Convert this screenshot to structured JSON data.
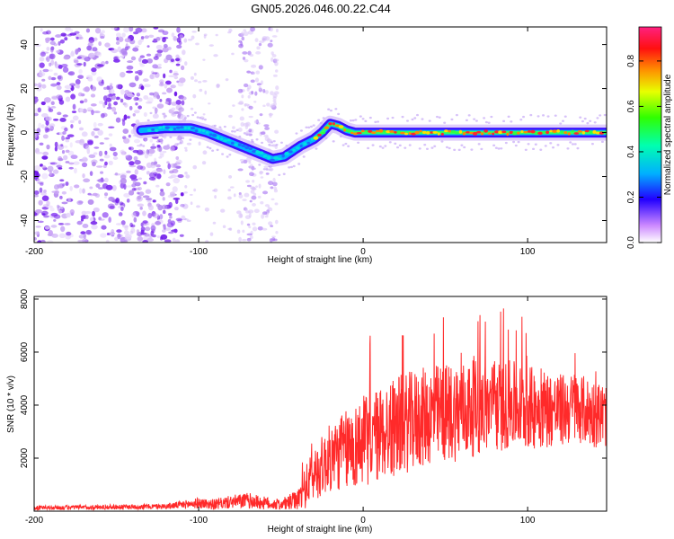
{
  "title": "GN05.2026.046.00.22.C44",
  "chart_data": [
    {
      "type": "heatmap",
      "xlabel": "Height of straight line (km)",
      "ylabel": "Frequency (Hz)",
      "xlim": [
        -200,
        148
      ],
      "ylim": [
        -50,
        48
      ],
      "xticks": [
        -200,
        -100,
        0,
        100
      ],
      "yticks": [
        -40,
        -20,
        0,
        20,
        40
      ],
      "colorbar": {
        "label": "Normalized spectral amplitude",
        "range": [
          0.0,
          0.95
        ],
        "ticks": [
          0.0,
          0.2,
          0.4,
          0.6,
          0.8
        ]
      },
      "ridge": {
        "x": [
          -135,
          -120,
          -105,
          -95,
          -85,
          -75,
          -65,
          -55,
          -48,
          -42,
          -38,
          -30,
          -25,
          -20,
          -15,
          -10,
          -5,
          0,
          20,
          50,
          80,
          110,
          148
        ],
        "y": [
          1,
          2,
          2,
          0,
          -3,
          -6,
          -9,
          -12,
          -11,
          -8,
          -6,
          -3,
          0,
          4,
          3,
          1,
          0,
          0,
          0,
          0,
          0,
          0,
          0
        ]
      },
      "noise_region_x": [
        -200,
        -108
      ],
      "noise_band_x": [
        -75,
        -52
      ]
    },
    {
      "type": "line",
      "xlabel": "Height of straight line (km)",
      "ylabel": "SNR (10 * v/v)",
      "xlim": [
        -200,
        148
      ],
      "ylim": [
        0,
        8100
      ],
      "xticks": [
        -200,
        -100,
        0,
        100
      ],
      "yticks": [
        2000,
        4000,
        6000,
        8000
      ],
      "series": [
        {
          "name": "SNR",
          "color": "#ff2a2a",
          "envelope": {
            "x": [
              -200,
              -120,
              -100,
              -90,
              -80,
              -70,
              -60,
              -50,
              -40,
              -35,
              -30,
              -20,
              -10,
              0,
              10,
              20,
              30,
              40,
              50,
              60,
              70,
              80,
              90,
              100,
              110,
              120,
              130,
              140,
              148
            ],
            "base": [
              120,
              180,
              300,
              250,
              350,
              400,
              300,
              250,
              400,
              900,
              1400,
              2000,
              2300,
              2600,
              2900,
              3200,
              3400,
              3600,
              3700,
              3800,
              3900,
              3900,
              4000,
              3900,
              3900,
              3800,
              3900,
              3700,
              3600
            ],
            "amp": [
              80,
              100,
              200,
              200,
              250,
              300,
              250,
              200,
              400,
              800,
              1000,
              1300,
              1500,
              1700,
              1800,
              1900,
              1900,
              1900,
              1900,
              1900,
              1800,
              1700,
              1700,
              1600,
              1500,
              1400,
              1300,
              1300,
              1200
            ]
          }
        }
      ]
    }
  ]
}
